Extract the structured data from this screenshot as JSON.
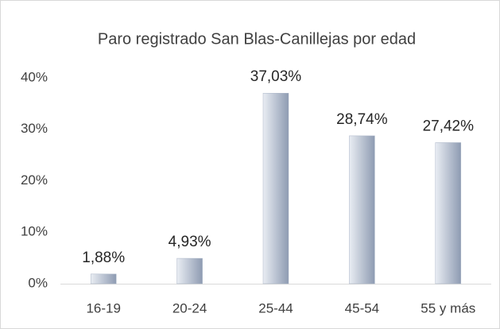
{
  "chart_data": {
    "type": "bar",
    "title": "Paro registrado San Blas-Canillejas por edad",
    "categories": [
      "16-19",
      "20-24",
      "25-44",
      "45-54",
      "55 y más"
    ],
    "values": [
      1.88,
      4.93,
      37.03,
      28.74,
      27.42
    ],
    "value_labels": [
      "1,88%",
      "4,93%",
      "37,03%",
      "28,74%",
      "27,42%"
    ],
    "color": "#a9b4c6",
    "ylim": [
      0,
      40
    ],
    "yticks": [
      {
        "value": 0,
        "label": "0%"
      },
      {
        "value": 10,
        "label": "10%"
      },
      {
        "value": 20,
        "label": "20%"
      },
      {
        "value": 30,
        "label": "30%"
      },
      {
        "value": 40,
        "label": "40%"
      }
    ],
    "grid": false
  }
}
